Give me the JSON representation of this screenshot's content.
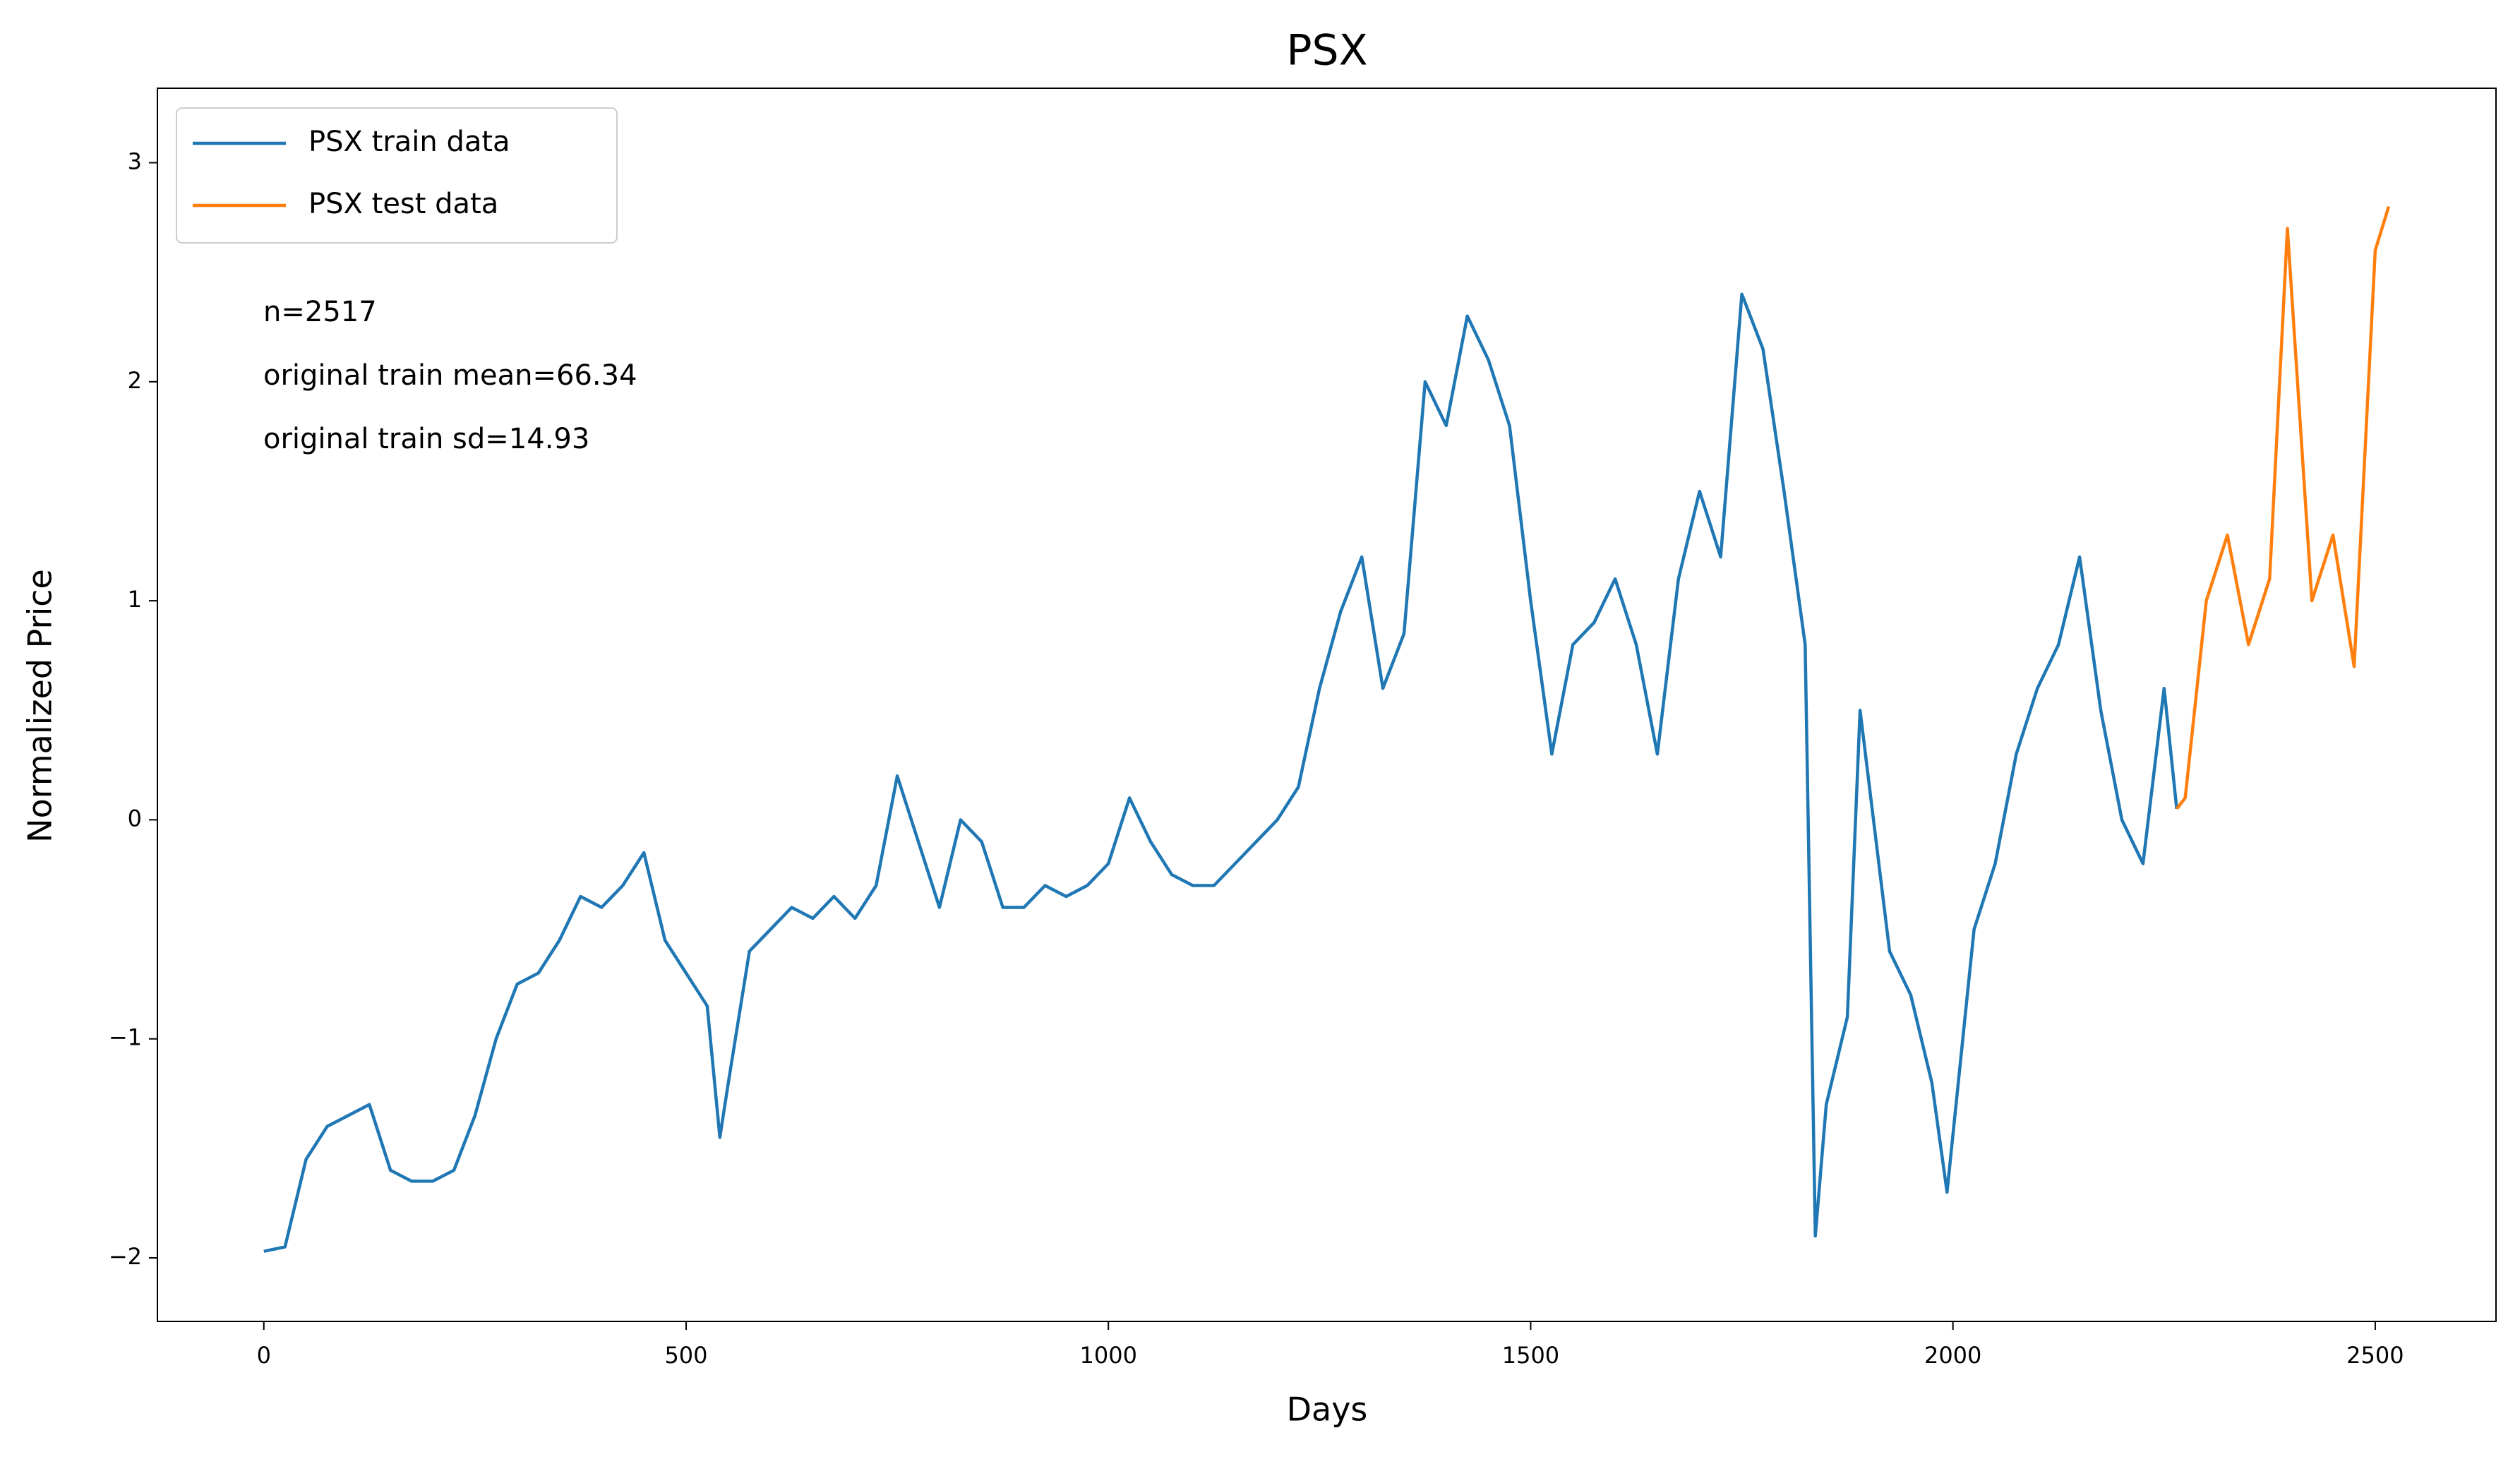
{
  "chart_data": {
    "type": "line",
    "title": "PSX",
    "xlabel": "Days",
    "ylabel": "Normalized Price",
    "annotations": [
      "n=2517",
      "original train mean=66.34",
      "original train sd=14.93"
    ],
    "xlim": [
      -126,
      2643
    ],
    "ylim": [
      -2.29,
      3.34
    ],
    "xticks": [
      0,
      500,
      1000,
      1500,
      2000,
      2500
    ],
    "yticks": [
      {
        "value": -2,
        "label": "−2"
      },
      {
        "value": -1,
        "label": "−1"
      },
      0,
      1,
      2,
      3
    ],
    "legend": "upper left",
    "series": [
      {
        "name": "PSX train data",
        "color": "#1f77b4",
        "x": [
          0,
          25,
          50,
          75,
          100,
          125,
          150,
          175,
          200,
          225,
          250,
          275,
          300,
          325,
          350,
          375,
          400,
          425,
          450,
          475,
          500,
          525,
          540,
          550,
          575,
          600,
          625,
          650,
          675,
          700,
          725,
          750,
          775,
          800,
          825,
          850,
          875,
          900,
          925,
          950,
          975,
          1000,
          1025,
          1050,
          1075,
          1100,
          1125,
          1150,
          1175,
          1200,
          1225,
          1250,
          1275,
          1300,
          1325,
          1350,
          1375,
          1400,
          1425,
          1450,
          1475,
          1500,
          1525,
          1550,
          1575,
          1600,
          1625,
          1650,
          1675,
          1700,
          1725,
          1750,
          1775,
          1800,
          1825,
          1837,
          1850,
          1875,
          1890,
          1925,
          1950,
          1975,
          1993,
          2025,
          2050,
          2075,
          2100,
          2125,
          2150,
          2175,
          2200,
          2225,
          2250,
          2265
        ],
        "values": [
          -1.97,
          -1.95,
          -1.55,
          -1.4,
          -1.35,
          -1.3,
          -1.6,
          -1.65,
          -1.65,
          -1.6,
          -1.35,
          -1.0,
          -0.75,
          -0.7,
          -0.55,
          -0.35,
          -0.4,
          -0.3,
          -0.15,
          -0.55,
          -0.7,
          -0.85,
          -1.45,
          -1.2,
          -0.6,
          -0.5,
          -0.4,
          -0.45,
          -0.35,
          -0.45,
          -0.3,
          0.2,
          -0.1,
          -0.4,
          0.0,
          -0.1,
          -0.4,
          -0.4,
          -0.3,
          -0.35,
          -0.3,
          -0.2,
          0.1,
          -0.1,
          -0.25,
          -0.3,
          -0.3,
          -0.2,
          -0.1,
          0.0,
          0.15,
          0.6,
          0.95,
          1.2,
          0.6,
          0.85,
          2.0,
          1.8,
          2.3,
          2.1,
          1.8,
          1.0,
          0.3,
          0.8,
          0.9,
          1.1,
          0.8,
          0.3,
          1.1,
          1.5,
          1.2,
          2.4,
          2.15,
          1.5,
          0.8,
          -1.9,
          -1.3,
          -0.9,
          0.5,
          -0.6,
          -0.8,
          -1.2,
          -1.7,
          -0.5,
          -0.2,
          0.3,
          0.6,
          0.8,
          1.2,
          0.5,
          0.0,
          -0.2,
          0.6,
          0.05
        ]
      },
      {
        "name": "PSX test data",
        "color": "#ff7f0e",
        "x": [
          2265,
          2275,
          2300,
          2325,
          2350,
          2375,
          2396,
          2425,
          2450,
          2475,
          2500,
          2516
        ],
        "values": [
          0.05,
          0.1,
          1.0,
          1.3,
          0.8,
          1.1,
          2.7,
          1.0,
          1.3,
          0.7,
          2.6,
          2.8
        ]
      }
    ]
  }
}
